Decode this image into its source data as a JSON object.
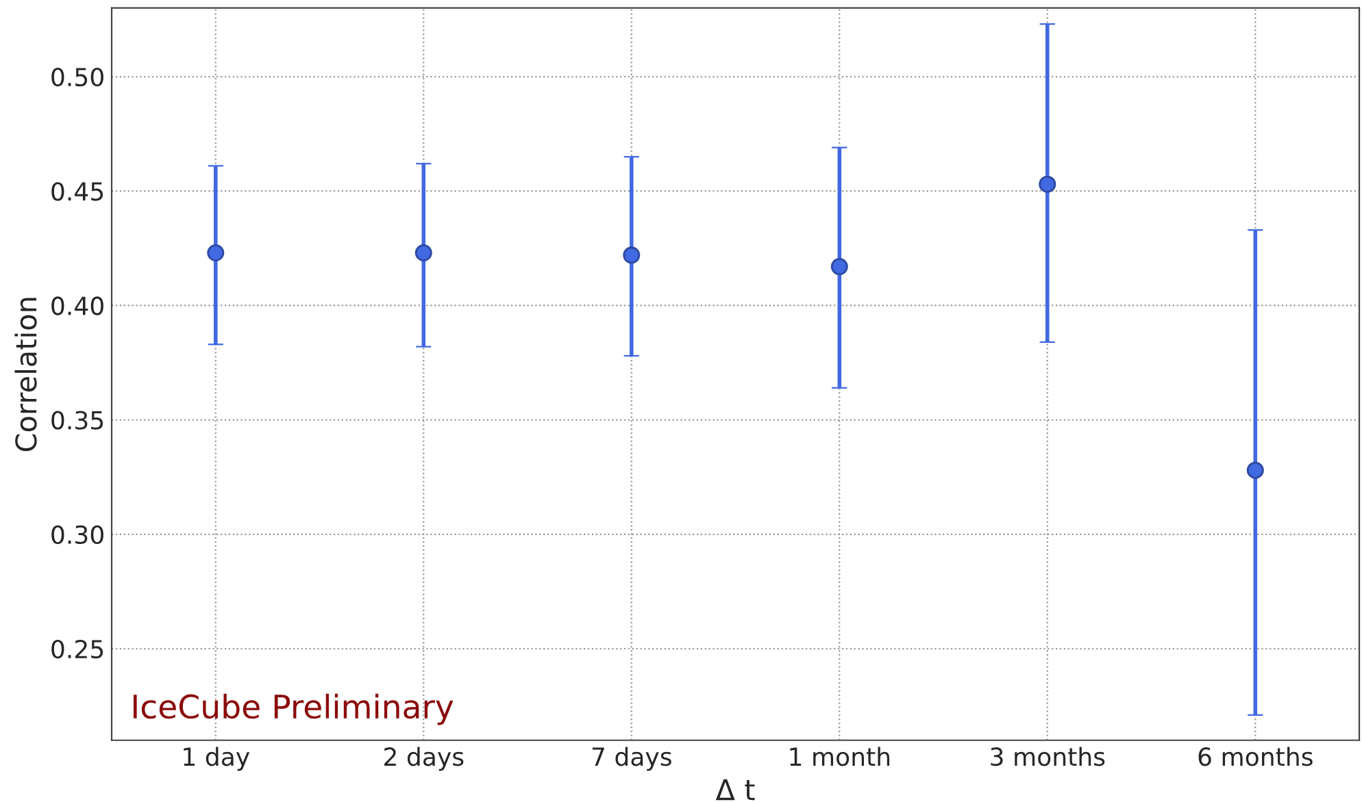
{
  "chart_data": {
    "type": "scatter",
    "xlabel": "Δ t",
    "ylabel": "Correlation",
    "categories": [
      "1 day",
      "2 days",
      "7 days",
      "1 month",
      "3 months",
      "6 months"
    ],
    "series": [
      {
        "color": "#4169e1",
        "values": [
          0.423,
          0.423,
          0.422,
          0.417,
          0.453,
          0.328
        ],
        "errors": [
          [
            0.383,
            0.461
          ],
          [
            0.382,
            0.462
          ],
          [
            0.378,
            0.465
          ],
          [
            0.364,
            0.469
          ],
          [
            0.384,
            0.523
          ],
          [
            0.221,
            0.433
          ]
        ]
      }
    ],
    "ylim": [
      0.21,
      0.53
    ],
    "yticks": [
      0.25,
      {
        "value": 0.3,
        "label": "0.30"
      },
      0.35,
      {
        "value": 0.4,
        "label": "0.40"
      },
      0.45,
      {
        "value": 0.5,
        "label": "0.50"
      }
    ],
    "annotations": [
      "IceCube Preliminary"
    ],
    "grid": true,
    "marker": "circle",
    "line_style": "none"
  }
}
